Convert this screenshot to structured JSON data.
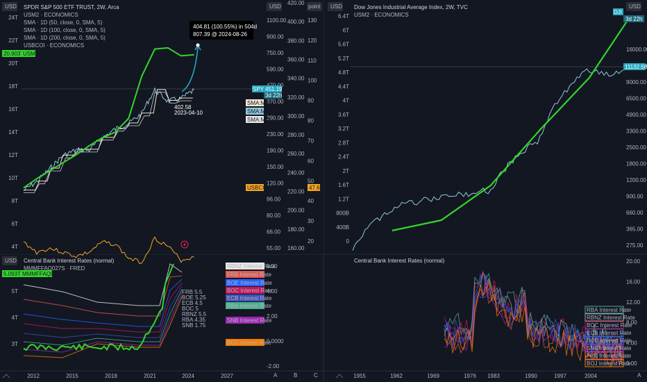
{
  "colors": {
    "bg": "#131722",
    "grid": "#1e222d",
    "text": "#b2b5be",
    "green": "#33d62b",
    "cyan": "#26a6c0",
    "orange": "#f5a623",
    "white": "#e8e8e8"
  },
  "left_top": {
    "currency": "USD",
    "legend": [
      "SPDR S&P 500 ETF TRUST, 2W, Arca",
      "USM2 · ECONOMICS",
      "SMA · 1D (50, close, 0, SMA, 5)",
      "SMA · 1D (100, close, 0, SMA, 5)",
      "SMA · 1D (200, close, 0, SMA, 5)",
      "USBCOI · ECONOMICS"
    ],
    "usm2_tag_value": "20.903T",
    "usm2_tag_label": "USM2",
    "axis_left": [
      "24T",
      "22T",
      "20T",
      "18T",
      "16T",
      "14T",
      "12T",
      "10T",
      "8T",
      "6T",
      "4T"
    ],
    "axis_mid_header": "USD",
    "axis_mid": [
      "1100.00",
      "900.00",
      "750.00",
      "590.00",
      "470.00",
      "370.00",
      "290.00",
      "230.00",
      "190.00",
      "150.00",
      "120.00",
      "96.00",
      "80.00",
      "66.00",
      "55.00"
    ],
    "axis_right": [
      "420.00",
      "400.00",
      "380.00",
      "360.00",
      "340.00",
      "320.00",
      "300.00",
      "280.00",
      "260.00",
      "240.00",
      "220.00",
      "200.00",
      "180.00",
      "160.00"
    ],
    "point_header": "point",
    "axis_point": [
      "130",
      "120",
      "110",
      "100",
      "90",
      "80",
      "70",
      "60",
      "50",
      "40",
      "30",
      "20"
    ],
    "spy_tag": "SPY",
    "spy_value": "451.19",
    "spy_pct": "3d 22h",
    "sma_tags": [
      "SMA:MA",
      "SMA:MA",
      "SMA:MA"
    ],
    "usbcoi_tag": "USBCOI",
    "usbcoi_value": "47.6",
    "callout_line1": "404.81 (100.55%) in 504d",
    "callout_line2": "807.39 @ 2024-08-26",
    "low_label": "402.58",
    "low_date": "2023-04-10"
  },
  "left_bottom": {
    "currency": "USD",
    "legend": [
      "Central Bank Interest Rates (normal)",
      "MMMFFAQ027S · FRED"
    ],
    "mmm_tag_value": "5.093T",
    "mmm_tag_label": "MMMFFAQ027S",
    "axis_left": [
      "5T",
      "4T",
      "3T"
    ],
    "axis_right": [
      "6.00",
      "4.00",
      "2.00",
      "0.0000",
      "-2.00"
    ],
    "rate_tags": [
      {
        "label": "RBNZ Interest Rate",
        "color": "#e8e8e8",
        "text": "#131722"
      },
      {
        "label": "FRB Interest Rate",
        "color": "#e05a4f",
        "text": "#ffffff"
      },
      {
        "label": "BOE Interest Rate",
        "color": "#2962ff",
        "text": "#ffffff"
      },
      {
        "label": "BOC Interest Rate",
        "color": "#c2185b",
        "text": "#ffffff"
      },
      {
        "label": "ECB Interest Rate",
        "color": "#3f51b5",
        "text": "#ffffff"
      },
      {
        "label": "RBA Interest Rate",
        "color": "#4caf8f",
        "text": "#ffffff"
      },
      {
        "label": "SNB Interest Rate",
        "color": "#9c27b0",
        "text": "#ffffff"
      },
      {
        "label": "BOJ Interest Rate",
        "color": "#f57c00",
        "text": "#131722"
      }
    ],
    "rate_mini_labels": [
      "FRB 5.5",
      "BOE 5.25",
      "ECB 4.5",
      "BOC 5",
      "RBNZ 5.5",
      "RBA 4.35",
      "SNB 1.75"
    ],
    "x_axis": [
      "2012",
      "2015",
      "2018",
      "2021",
      "2024",
      "2027"
    ]
  },
  "right_top": {
    "currency_left": "USD",
    "currency_right": "USD",
    "legend": [
      "Dow Jones Industrial Average Index, 2W, TVC",
      "USM2 · ECONOMICS"
    ],
    "axis_left": [
      "6.4T",
      "6T",
      "5.6T",
      "5.2T",
      "4.8T",
      "4.4T",
      "4T",
      "3.6T",
      "3.2T",
      "2.8T",
      "2.4T",
      "2T",
      "1.6T",
      "1.2T",
      "800B",
      "400B",
      "0"
    ],
    "axis_right": [
      "16000.00",
      "12000.00",
      "9000.00",
      "6500.00",
      "4900.00",
      "3300.00",
      "2500.00",
      "1800.00",
      "1200.00",
      "900.00",
      "660.00",
      "365.00",
      "275.00"
    ],
    "dji_tag": "DJI",
    "dji_pct": "3d 22h",
    "dji_value": "11132.56"
  },
  "right_bottom": {
    "legend": [
      "Central Bank Interest Rates (normal)"
    ],
    "axis_right": [
      "20.00",
      "16.00",
      "12.00",
      "8.00",
      "4.00",
      "0.00"
    ],
    "rate_tags": [
      {
        "label": "RBA Interest Rate",
        "color": "#4caf8f"
      },
      {
        "label": "RBNZ Interest Rate",
        "color": "#9e9e9e"
      },
      {
        "label": "BOC Interest Rate",
        "color": "#c2185b"
      },
      {
        "label": "ECB Interest Rate",
        "color": "#3f51b5"
      },
      {
        "label": "BOE Interest Rate",
        "color": "#2962ff"
      },
      {
        "label": "SNB Interest Rate",
        "color": "#9c27b0"
      },
      {
        "label": "FRB Interest Rate",
        "color": "#e05a4f"
      },
      {
        "label": "BOJ Interest Rate",
        "color": "#f57c00"
      }
    ],
    "x_axis": [
      "1955",
      "1962",
      "1969",
      "1976",
      "1983",
      "1990",
      "1997",
      "2004"
    ]
  },
  "bottom_bar": {
    "left_marks": [
      "A",
      "B",
      "C"
    ],
    "right_marks": [
      "A"
    ]
  },
  "chart_data": [
    {
      "type": "line",
      "ylabel": "USD",
      "x_labels": [
        "2012",
        "2015",
        "2018",
        "2021",
        "2024",
        "2027"
      ],
      "series": [
        {
          "name": "SPDR S&P 500 ETF TRUST",
          "x": [
            2011,
            2012,
            2013,
            2014,
            2015,
            2016,
            2017,
            2018,
            2019,
            2020,
            2021,
            2022,
            2023,
            2024
          ],
          "values": [
            120,
            135,
            160,
            190,
            205,
            205,
            240,
            270,
            290,
            330,
            450,
            390,
            402.58,
            451.19
          ]
        },
        {
          "name": "USM2",
          "x": [
            2011,
            2012,
            2013,
            2014,
            2015,
            2016,
            2017,
            2018,
            2019,
            2020,
            2021,
            2022,
            2023,
            2024
          ],
          "values": [
            9.2,
            10.0,
            10.7,
            11.4,
            12.1,
            12.9,
            13.6,
            14.1,
            15.3,
            19.0,
            21.4,
            21.5,
            20.8,
            20.903
          ]
        },
        {
          "name": "USBCOI",
          "x": [
            2011,
            2012,
            2013,
            2014,
            2015,
            2016,
            2017,
            2018,
            2019,
            2020,
            2021,
            2022,
            2023,
            2024
          ],
          "values": [
            55,
            50,
            52,
            50,
            48,
            50,
            55,
            54,
            47,
            45,
            57,
            53,
            46,
            47.6
          ]
        }
      ]
    },
    {
      "type": "line",
      "x_labels": [
        "1955",
        "1962",
        "1969",
        "1976",
        "1983",
        "1990",
        "1997",
        "2004"
      ],
      "series": [
        {
          "name": "Dow Jones Industrial Average Index",
          "x": [
            1952,
            1960,
            1970,
            1980,
            1990,
            2000,
            2004,
            2008
          ],
          "values": [
            275,
            620,
            780,
            900,
            2600,
            11000,
            10000,
            11132.56
          ]
        },
        {
          "name": "USM2",
          "x": [
            1960,
            1970,
            1980,
            1990,
            2000,
            2008
          ],
          "values": [
            0.3,
            0.6,
            1.6,
            3.2,
            4.7,
            6.4
          ]
        }
      ]
    }
  ]
}
